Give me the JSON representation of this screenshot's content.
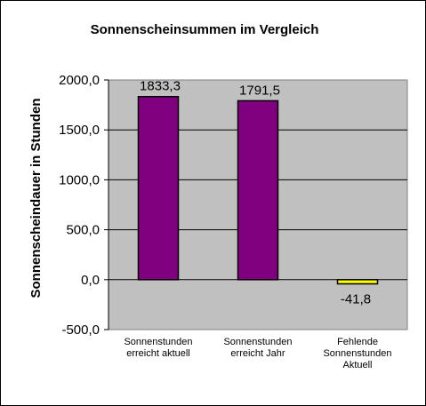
{
  "chart_data": {
    "type": "bar",
    "title": "Sonnenscheinsummen  im Vergleich",
    "xlabel": "",
    "ylabel": "Sonnenscheindauer in Stunden",
    "ylim": [
      -500,
      2000
    ],
    "yticks": [
      2000,
      1500,
      1000,
      500,
      0,
      -500
    ],
    "ytick_labels": [
      "2000,0",
      "1500,0",
      "1000,0",
      "500,0",
      "0,0",
      "-500,0"
    ],
    "grid": true,
    "legend": "none",
    "categories": [
      [
        "Sonnenstunden",
        "erreicht aktuell"
      ],
      [
        "Sonnenstunden",
        "erreicht Jahr"
      ],
      [
        "Fehlende",
        "Sonnenstunden",
        "Aktuell"
      ]
    ],
    "values": [
      1833.3,
      1791.5,
      -41.8
    ],
    "value_labels": [
      "1833,3",
      "1791,5",
      "-41,8"
    ],
    "colors": [
      "#800080",
      "#800080",
      "#FFFF00"
    ],
    "plot_background": "#C0C0C0"
  }
}
